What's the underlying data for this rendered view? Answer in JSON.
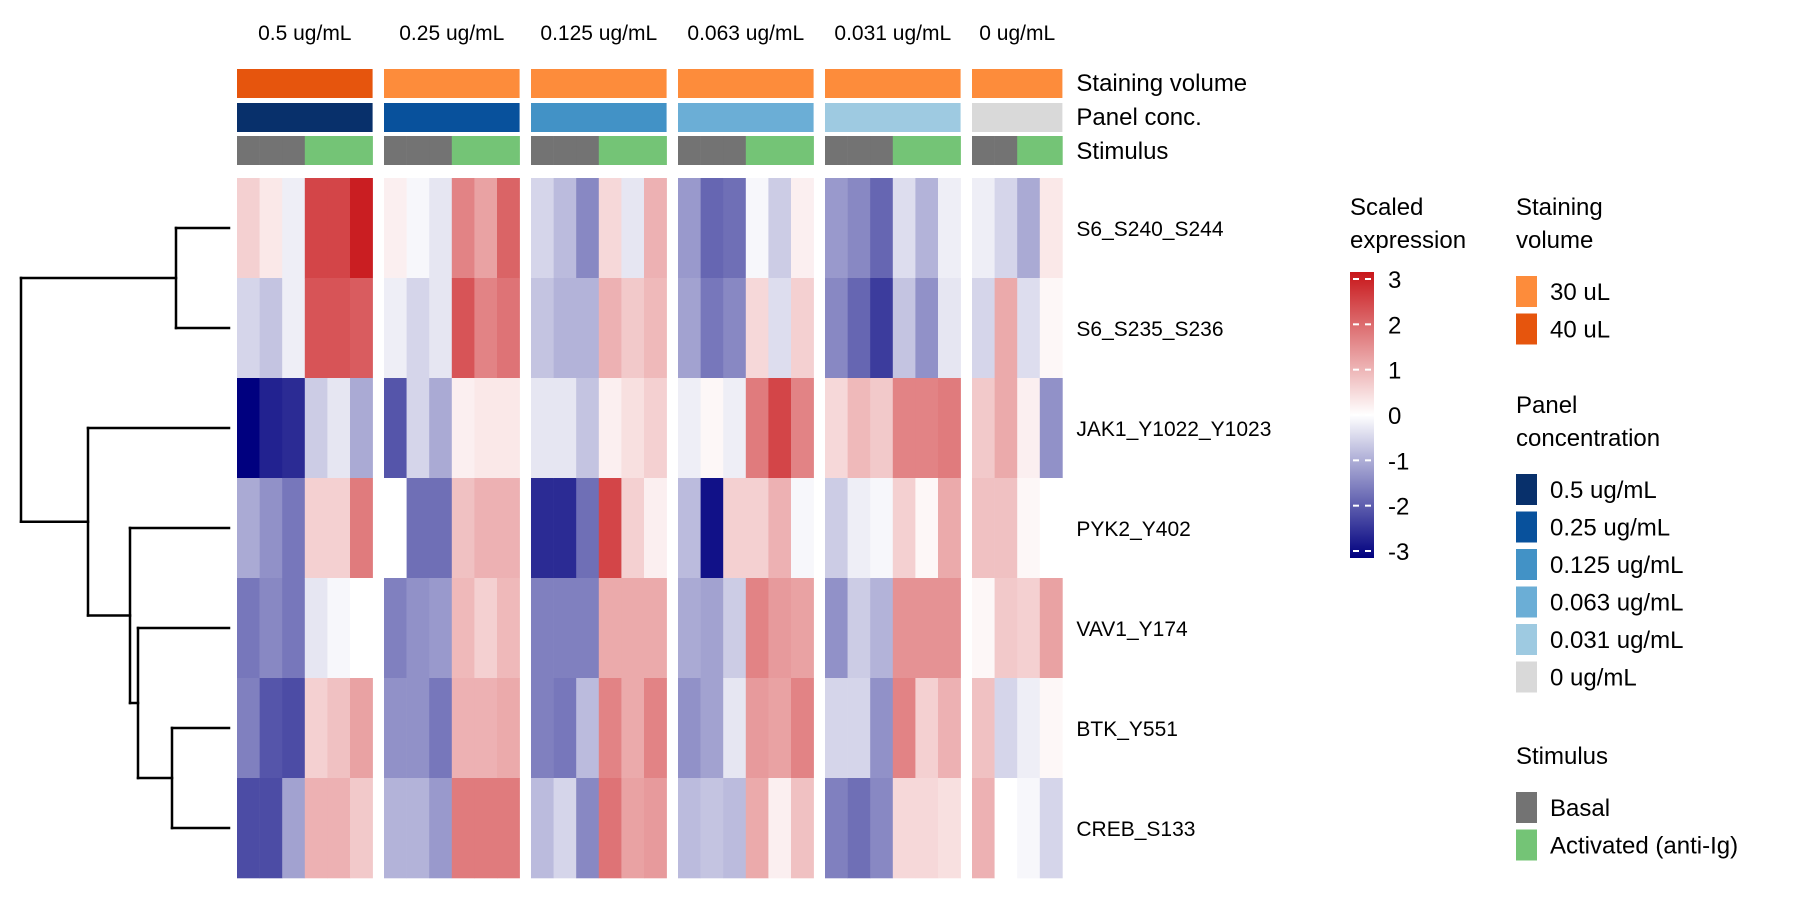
{
  "chart_data": {
    "type": "heatmap",
    "column_groups": [
      {
        "label": "0.5 ug/mL",
        "staining_volume": "40 uL",
        "panel_conc": "0.5 ug/mL",
        "stimulus": [
          "Basal",
          "Basal",
          "Basal",
          "Activated (anti-Ig)",
          "Activated (anti-Ig)",
          "Activated (anti-Ig)"
        ]
      },
      {
        "label": "0.25 ug/mL",
        "staining_volume": "30 uL",
        "panel_conc": "0.25 ug/mL",
        "stimulus": [
          "Basal",
          "Basal",
          "Basal",
          "Activated (anti-Ig)",
          "Activated (anti-Ig)",
          "Activated (anti-Ig)"
        ]
      },
      {
        "label": "0.125 ug/mL",
        "staining_volume": "30 uL",
        "panel_conc": "0.125 ug/mL",
        "stimulus": [
          "Basal",
          "Basal",
          "Basal",
          "Activated (anti-Ig)",
          "Activated (anti-Ig)",
          "Activated (anti-Ig)"
        ]
      },
      {
        "label": "0.063 ug/mL",
        "staining_volume": "30 uL",
        "panel_conc": "0.063 ug/mL",
        "stimulus": [
          "Basal",
          "Basal",
          "Basal",
          "Activated (anti-Ig)",
          "Activated (anti-Ig)",
          "Activated (anti-Ig)"
        ]
      },
      {
        "label": "0.031 ug/mL",
        "staining_volume": "30 uL",
        "panel_conc": "0.031 ug/mL",
        "stimulus": [
          "Basal",
          "Basal",
          "Basal",
          "Activated (anti-Ig)",
          "Activated (anti-Ig)",
          "Activated (anti-Ig)"
        ]
      },
      {
        "label": "0 ug/mL",
        "staining_volume": "30 uL",
        "panel_conc": "0 ug/mL",
        "stimulus": [
          "Basal",
          "Basal",
          "Activated (anti-Ig)",
          "Activated (anti-Ig)"
        ]
      }
    ],
    "annotation_labels": [
      "Staining volume",
      "Panel conc.",
      "Stimulus"
    ],
    "rows": [
      "S6_S240_S244",
      "S6_S235_S236",
      "JAK1_Y1022_Y1023",
      "PYK2_Y402",
      "VAV1_Y174",
      "BTK_Y551",
      "CREB_S133"
    ],
    "values": [
      [
        0.6,
        0.3,
        -0.2,
        2.4,
        2.4,
        2.9,
        0.2,
        -0.1,
        -0.3,
        1.6,
        1.2,
        2.0,
        -0.5,
        -0.8,
        -1.4,
        0.5,
        -0.3,
        1.0,
        -1.2,
        -1.8,
        -1.7,
        -0.1,
        -0.6,
        0.2,
        -1.2,
        -1.4,
        -1.8,
        -0.4,
        -0.9,
        -0.2,
        -0.2,
        -0.5,
        -1.0,
        0.3
      ],
      [
        -0.5,
        -0.7,
        -0.2,
        2.2,
        2.2,
        2.1,
        -0.2,
        -0.5,
        -0.3,
        2.2,
        1.6,
        1.8,
        -0.7,
        -0.9,
        -0.9,
        1.0,
        0.7,
        0.9,
        -1.1,
        -1.6,
        -1.4,
        0.5,
        -0.4,
        0.6,
        -1.4,
        -1.8,
        -2.3,
        -0.7,
        -1.3,
        -0.3,
        -0.5,
        1.1,
        -0.4,
        0.1
      ],
      [
        -3.0,
        -2.6,
        -2.5,
        -0.6,
        -0.3,
        -1.0,
        -2.0,
        -0.5,
        -1.0,
        0.2,
        0.3,
        0.3,
        -0.3,
        -0.3,
        -0.7,
        0.2,
        0.4,
        0.6,
        -0.2,
        0.1,
        -0.2,
        1.7,
        2.4,
        1.6,
        0.5,
        0.9,
        0.7,
        1.6,
        1.6,
        1.7,
        0.7,
        1.1,
        0.2,
        -1.3
      ],
      [
        -1.0,
        -1.3,
        -1.6,
        0.6,
        0.6,
        1.7,
        0.0,
        -1.7,
        -1.7,
        0.8,
        1.0,
        1.0,
        -2.5,
        -2.5,
        -1.7,
        2.4,
        0.6,
        0.2,
        -0.8,
        -2.8,
        0.6,
        0.6,
        1.0,
        -0.1,
        -0.6,
        -0.2,
        -0.1,
        0.6,
        0.1,
        1.1,
        0.8,
        0.8,
        0.1,
        0.0
      ],
      [
        -1.6,
        -1.4,
        -1.6,
        -0.3,
        -0.1,
        0.0,
        -1.5,
        -1.3,
        -1.2,
        0.9,
        0.6,
        0.9,
        -1.5,
        -1.5,
        -1.5,
        1.1,
        1.1,
        1.1,
        -1.0,
        -1.1,
        -0.6,
        1.6,
        1.3,
        1.2,
        -1.3,
        -0.6,
        -0.9,
        1.4,
        1.4,
        1.4,
        0.1,
        0.7,
        0.6,
        1.2
      ],
      [
        -1.5,
        -2.0,
        -2.1,
        0.6,
        0.8,
        1.2,
        -1.3,
        -1.3,
        -1.6,
        1.0,
        1.0,
        1.1,
        -1.5,
        -1.6,
        -0.8,
        1.6,
        1.1,
        1.6,
        -1.3,
        -1.1,
        -0.3,
        1.3,
        1.2,
        1.6,
        -0.5,
        -0.5,
        -1.3,
        1.6,
        0.6,
        1.0,
        0.8,
        -0.5,
        -0.2,
        0.1
      ],
      [
        -2.1,
        -2.1,
        -1.1,
        1.0,
        1.0,
        0.7,
        -0.9,
        -0.9,
        -1.2,
        1.7,
        1.7,
        1.7,
        -0.8,
        -0.5,
        -1.4,
        1.8,
        1.2,
        1.3,
        -0.8,
        -0.7,
        -0.8,
        1.1,
        0.2,
        0.8,
        -1.5,
        -1.7,
        -1.4,
        0.5,
        0.5,
        0.4,
        1.0,
        0.0,
        -0.1,
        -0.5
      ]
    ],
    "color_legend": {
      "title_line1": "Scaled",
      "title_line2": "expression",
      "range": [
        -3,
        3
      ],
      "ticks": [
        "3",
        "2",
        "1",
        "0",
        "-1",
        "-2",
        "-3"
      ],
      "low": "#00007f",
      "mid": "#ffffff",
      "high": "#c8161a"
    },
    "legends": {
      "staining_volume": {
        "title_line1": "Staining",
        "title_line2": "volume",
        "items": [
          {
            "label": "30 uL",
            "color": "#fd8c3b"
          },
          {
            "label": "40 uL",
            "color": "#e6550d"
          }
        ]
      },
      "panel_concentration": {
        "title_line1": "Panel",
        "title_line2": "concentration",
        "items": [
          {
            "label": "0.5 ug/mL",
            "color": "#08306b"
          },
          {
            "label": "0.25 ug/mL",
            "color": "#08519c"
          },
          {
            "label": "0.125 ug/mL",
            "color": "#4292c6"
          },
          {
            "label": "0.063 ug/mL",
            "color": "#6baed6"
          },
          {
            "label": "0.031 ug/mL",
            "color": "#9ecae1"
          },
          {
            "label": "0 ug/mL",
            "color": "#d9d9d9"
          }
        ]
      },
      "stimulus": {
        "title_line1": "Stimulus",
        "items": [
          {
            "label": "Basal",
            "color": "#737373"
          },
          {
            "label": "Activated (anti-Ig)",
            "color": "#74c476"
          }
        ]
      }
    },
    "dendrogram": {
      "leaf_order": [
        "S6_S240_S244",
        "S6_S235_S236",
        "JAK1_Y1022_Y1023",
        "PYK2_Y402",
        "VAV1_Y174",
        "BTK_Y551",
        "CREB_S133"
      ],
      "merges": [
        [
          0,
          1
        ],
        [
          5,
          6
        ],
        [
          4,
          "5+6"
        ],
        [
          3,
          "4+5+6"
        ],
        [
          2,
          "3+4+5+6"
        ],
        [
          "0+1",
          "2+3+4+5+6"
        ]
      ]
    },
    "legend_placement": "right"
  }
}
